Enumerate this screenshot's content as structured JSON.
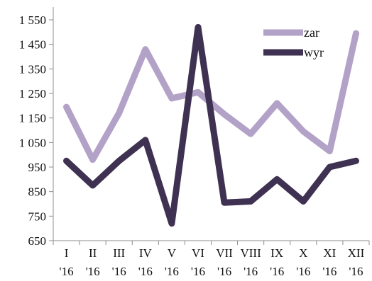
{
  "chart_data": {
    "type": "line",
    "title": "",
    "xlabel": "",
    "ylabel": "",
    "ylim": [
      650,
      1550
    ],
    "yticks": [
      650,
      750,
      850,
      950,
      1050,
      1150,
      1250,
      1350,
      1450,
      1550
    ],
    "ytick_labels": [
      "650",
      "750",
      "850",
      "950",
      "1 050",
      "1 150",
      "1 250",
      "1 350",
      "1 450",
      "1 550"
    ],
    "grid": false,
    "legend_position": "top-right",
    "categories": [
      {
        "month": "I",
        "year": "'16"
      },
      {
        "month": "II",
        "year": "'16"
      },
      {
        "month": "III",
        "year": "'16"
      },
      {
        "month": "IV",
        "year": "'16"
      },
      {
        "month": "V",
        "year": "'16"
      },
      {
        "month": "VI",
        "year": "'16"
      },
      {
        "month": "VII",
        "year": "'16"
      },
      {
        "month": "VIII",
        "year": "'16"
      },
      {
        "month": "IX",
        "year": "'16"
      },
      {
        "month": "X",
        "year": "'16"
      },
      {
        "month": "XI",
        "year": "'16"
      },
      {
        "month": "XII",
        "year": "'16"
      }
    ],
    "series": [
      {
        "name": "zar",
        "color": "#b3a2c7",
        "values": [
          1195,
          980,
          1170,
          1430,
          1230,
          1255,
          1165,
          1085,
          1210,
          1095,
          1015,
          1495
        ]
      },
      {
        "name": "wyr",
        "color": "#3f3151",
        "values": [
          975,
          875,
          975,
          1060,
          720,
          1520,
          805,
          810,
          900,
          810,
          950,
          975
        ]
      }
    ]
  }
}
